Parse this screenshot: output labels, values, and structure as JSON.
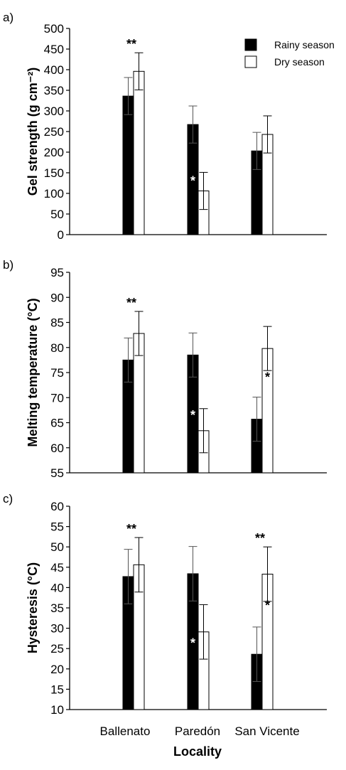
{
  "legend": {
    "rainy": "Rainy season",
    "dry": "Dry season"
  },
  "colors": {
    "rainy": "#000000",
    "dry": "#ffffff",
    "axis": "#000000",
    "error": "#555555"
  },
  "xlabel": "Locality",
  "chart_data": [
    {
      "type": "bar",
      "panel": "a)",
      "ylabel": "Gel strength (g cm⁻²)",
      "ylim": [
        0,
        500
      ],
      "yticks": [
        "0",
        "50",
        "100",
        "150",
        "200",
        "250",
        "300",
        "350",
        "400",
        "450",
        "500"
      ],
      "categories": [
        "Ballenato",
        "Paredón",
        "San Vicente"
      ],
      "series": [
        {
          "name": "Rainy season",
          "values": [
            336,
            267,
            203
          ],
          "errors": [
            45,
            45,
            45
          ]
        },
        {
          "name": "Dry season",
          "values": [
            396,
            106,
            243
          ],
          "errors": [
            45,
            45,
            45
          ]
        }
      ],
      "annotations": [
        {
          "category": "Ballenato",
          "text": "**",
          "where": "above"
        },
        {
          "category": "Paredón",
          "text": "*",
          "where": "inside-rainy"
        }
      ],
      "legend_position": "top-right"
    },
    {
      "type": "bar",
      "panel": "b)",
      "ylabel": "Melting temperature (°C)",
      "ylim": [
        55,
        95
      ],
      "yticks": [
        "55",
        "60",
        "65",
        "70",
        "75",
        "80",
        "85",
        "90",
        "95"
      ],
      "categories": [
        "Ballenato",
        "Paredón",
        "San Vicente"
      ],
      "series": [
        {
          "name": "Rainy season",
          "values": [
            77.5,
            78.5,
            65.7
          ],
          "errors": [
            4.4,
            4.4,
            4.4
          ]
        },
        {
          "name": "Dry season",
          "values": [
            82.8,
            63.4,
            79.8
          ],
          "errors": [
            4.4,
            4.4,
            4.4
          ]
        }
      ],
      "annotations": [
        {
          "category": "Ballenato",
          "text": "**",
          "where": "above"
        },
        {
          "category": "Paredón",
          "text": "*",
          "where": "inside-rainy"
        },
        {
          "category": "San Vicente",
          "text": "*",
          "where": "inside-dry"
        }
      ]
    },
    {
      "type": "bar",
      "panel": "c)",
      "ylabel": "Hysteresis (°C)",
      "ylim": [
        10,
        60
      ],
      "yticks": [
        "10",
        "15",
        "20",
        "25",
        "30",
        "35",
        "40",
        "45",
        "50",
        "55",
        "60"
      ],
      "categories": [
        "Ballenato",
        "Paredón",
        "San Vicente"
      ],
      "series": [
        {
          "name": "Rainy season",
          "values": [
            42.7,
            43.4,
            23.6
          ],
          "errors": [
            6.7,
            6.7,
            6.7
          ]
        },
        {
          "name": "Dry season",
          "values": [
            45.6,
            29.1,
            43.3
          ],
          "errors": [
            6.7,
            6.7,
            6.7
          ]
        }
      ],
      "annotations": [
        {
          "category": "Ballenato",
          "text": "**",
          "where": "above"
        },
        {
          "category": "Paredón",
          "text": "*",
          "where": "inside-rainy"
        },
        {
          "category": "San Vicente",
          "text": "**",
          "where": "above"
        },
        {
          "category": "San Vicente",
          "text": "*",
          "where": "inside-dry"
        }
      ]
    }
  ]
}
